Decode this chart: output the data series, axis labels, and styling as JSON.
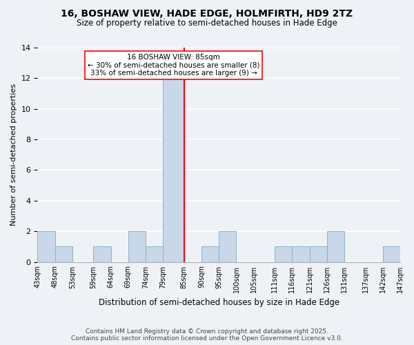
{
  "title": "16, BOSHAW VIEW, HADE EDGE, HOLMFIRTH, HD9 2TZ",
  "subtitle": "Size of property relative to semi-detached houses in Hade Edge",
  "xlabel": "Distribution of semi-detached houses by size in Hade Edge",
  "ylabel": "Number of semi-detached properties",
  "bar_color": "#c8d8e8",
  "bar_edge_color": "#8ab0c8",
  "background_color": "#eef2f7",
  "grid_color": "white",
  "property_line_x": 85,
  "property_line_color": "red",
  "annotation_text": "16 BOSHAW VIEW: 85sqm\n← 30% of semi-detached houses are smaller (8)\n33% of semi-detached houses are larger (9) →",
  "annotation_box_color": "white",
  "annotation_box_edge": "red",
  "bins": [
    43,
    48,
    53,
    59,
    64,
    69,
    74,
    79,
    85,
    90,
    95,
    100,
    105,
    111,
    116,
    121,
    126,
    131,
    137,
    142,
    147
  ],
  "tick_labels": [
    "43sqm",
    "48sqm",
    "53sqm",
    "59sqm",
    "64sqm",
    "69sqm",
    "74sqm",
    "79sqm",
    "85sqm",
    "90sqm",
    "95sqm",
    "100sqm",
    "105sqm",
    "111sqm",
    "116sqm",
    "121sqm",
    "126sqm",
    "131sqm",
    "137sqm",
    "142sqm",
    "147sqm"
  ],
  "counts": [
    2,
    1,
    0,
    1,
    0,
    2,
    1,
    12,
    0,
    1,
    2,
    0,
    0,
    1,
    1,
    1,
    2,
    0,
    0,
    1
  ],
  "ylim": [
    0,
    14
  ],
  "yticks": [
    0,
    2,
    4,
    6,
    8,
    10,
    12,
    14
  ],
  "footnote": "Contains HM Land Registry data © Crown copyright and database right 2025.\nContains public sector information licensed under the Open Government Licence v3.0."
}
